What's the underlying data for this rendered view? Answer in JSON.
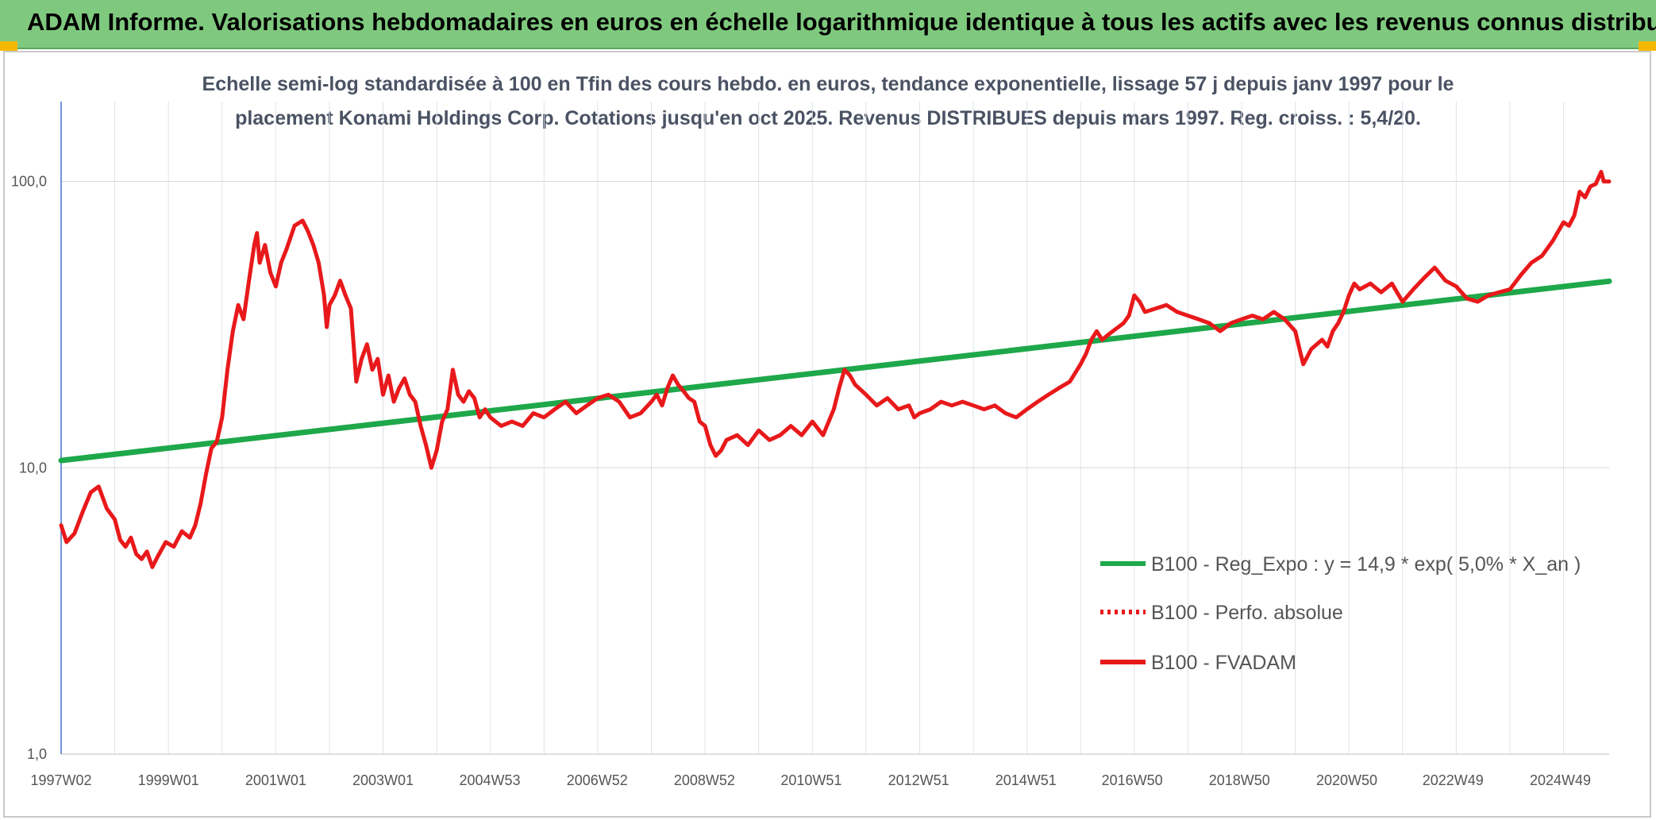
{
  "header": {
    "title": "ADAM Informe. Valorisations hebdomadaires en euros en échelle logarithmique identique à tous les actifs avec les revenus connus distribués",
    "background": "#7fc97f",
    "corner_color": "#f5b800"
  },
  "chart_data": {
    "type": "line",
    "subtitle_line1": "Echelle semi-log standardisée à 100 en Tfin des cours hebdo. en euros, tendance exponentielle, lissage 57 j depuis janv 1997 pour le",
    "subtitle_line2": "placement Konami Holdings Corp. Cotations jusqu'en oct 2025. Revenus DISTRIBUES depuis mars 1997. Reg. croiss. : 5,4/20.",
    "y_scale": "log",
    "ylim": [
      1,
      190
    ],
    "y_ticks": [
      {
        "value": 1,
        "label": "1,0"
      },
      {
        "value": 10,
        "label": "10,0"
      },
      {
        "value": 100,
        "label": "100,0"
      }
    ],
    "xlim": [
      1997.0,
      2025.85
    ],
    "x_ticks": [
      {
        "x": 1997.0,
        "label": "1997W02"
      },
      {
        "x": 1999.0,
        "label": "1999W01"
      },
      {
        "x": 2001.0,
        "label": "2001W01"
      },
      {
        "x": 2003.0,
        "label": "2003W01"
      },
      {
        "x": 2004.99,
        "label": "2004W53"
      },
      {
        "x": 2006.99,
        "label": "2006W52"
      },
      {
        "x": 2008.99,
        "label": "2008W52"
      },
      {
        "x": 2010.98,
        "label": "2010W51"
      },
      {
        "x": 2012.98,
        "label": "2012W51"
      },
      {
        "x": 2014.98,
        "label": "2014W51"
      },
      {
        "x": 2016.96,
        "label": "2016W50"
      },
      {
        "x": 2018.96,
        "label": "2018W50"
      },
      {
        "x": 2020.96,
        "label": "2020W50"
      },
      {
        "x": 2022.94,
        "label": "2022W49"
      },
      {
        "x": 2024.94,
        "label": "2024W49"
      }
    ],
    "grid": true,
    "legend_position": "bottom-right",
    "series": [
      {
        "name": "B100 - Reg_Expo : y = 14,9 * exp( 5,0% *  X_an )",
        "color": "#1ea84a",
        "style": "solid",
        "points": [
          [
            1997.0,
            10.6
          ],
          [
            2025.85,
            44.8
          ]
        ]
      },
      {
        "name": "B100 - Perfo. absolue",
        "color": "#e8191b",
        "style": "dotted",
        "points": []
      },
      {
        "name": "B100 - FVADAM",
        "color": "#e8191b",
        "style": "solid",
        "points": [
          [
            1997.0,
            6.3
          ],
          [
            1997.1,
            5.5
          ],
          [
            1997.25,
            5.9
          ],
          [
            1997.4,
            7.0
          ],
          [
            1997.55,
            8.2
          ],
          [
            1997.7,
            8.6
          ],
          [
            1997.85,
            7.2
          ],
          [
            1998.0,
            6.6
          ],
          [
            1998.1,
            5.6
          ],
          [
            1998.2,
            5.3
          ],
          [
            1998.3,
            5.7
          ],
          [
            1998.4,
            5.0
          ],
          [
            1998.5,
            4.8
          ],
          [
            1998.6,
            5.1
          ],
          [
            1998.7,
            4.5
          ],
          [
            1998.8,
            4.9
          ],
          [
            1998.95,
            5.5
          ],
          [
            1999.1,
            5.3
          ],
          [
            1999.25,
            6.0
          ],
          [
            1999.4,
            5.7
          ],
          [
            1999.5,
            6.3
          ],
          [
            1999.6,
            7.5
          ],
          [
            1999.7,
            9.5
          ],
          [
            1999.8,
            11.7
          ],
          [
            1999.9,
            12.3
          ],
          [
            2000.0,
            15.0
          ],
          [
            2000.1,
            22.0
          ],
          [
            2000.2,
            30.0
          ],
          [
            2000.3,
            37.0
          ],
          [
            2000.4,
            33.0
          ],
          [
            2000.5,
            45.0
          ],
          [
            2000.6,
            60.0
          ],
          [
            2000.65,
            66.0
          ],
          [
            2000.7,
            52.0
          ],
          [
            2000.8,
            60.0
          ],
          [
            2000.9,
            48.0
          ],
          [
            2001.0,
            43.0
          ],
          [
            2001.1,
            52.0
          ],
          [
            2001.2,
            58.0
          ],
          [
            2001.35,
            70.0
          ],
          [
            2001.5,
            73.0
          ],
          [
            2001.6,
            67.0
          ],
          [
            2001.7,
            60.0
          ],
          [
            2001.8,
            52.0
          ],
          [
            2001.9,
            40.0
          ],
          [
            2001.95,
            31.0
          ],
          [
            2002.0,
            37.0
          ],
          [
            2002.1,
            40.0
          ],
          [
            2002.2,
            45.0
          ],
          [
            2002.3,
            40.0
          ],
          [
            2002.4,
            36.0
          ],
          [
            2002.45,
            27.0
          ],
          [
            2002.5,
            20.0
          ],
          [
            2002.6,
            24.0
          ],
          [
            2002.7,
            27.0
          ],
          [
            2002.8,
            22.0
          ],
          [
            2002.9,
            24.0
          ],
          [
            2003.0,
            18.0
          ],
          [
            2003.1,
            21.0
          ],
          [
            2003.2,
            17.0
          ],
          [
            2003.3,
            19.0
          ],
          [
            2003.4,
            20.5
          ],
          [
            2003.5,
            18.0
          ],
          [
            2003.6,
            17.0
          ],
          [
            2003.7,
            14.0
          ],
          [
            2003.8,
            12.0
          ],
          [
            2003.9,
            10.0
          ],
          [
            2004.0,
            11.5
          ],
          [
            2004.1,
            14.5
          ],
          [
            2004.2,
            16.0
          ],
          [
            2004.3,
            22.0
          ],
          [
            2004.4,
            18.0
          ],
          [
            2004.5,
            17.0
          ],
          [
            2004.6,
            18.5
          ],
          [
            2004.7,
            17.5
          ],
          [
            2004.8,
            15.0
          ],
          [
            2004.9,
            16.0
          ],
          [
            2005.0,
            15.0
          ],
          [
            2005.2,
            14.0
          ],
          [
            2005.4,
            14.5
          ],
          [
            2005.6,
            14.0
          ],
          [
            2005.8,
            15.5
          ],
          [
            2006.0,
            15.0
          ],
          [
            2006.2,
            16.0
          ],
          [
            2006.4,
            17.0
          ],
          [
            2006.6,
            15.5
          ],
          [
            2006.8,
            16.5
          ],
          [
            2007.0,
            17.5
          ],
          [
            2007.2,
            18.0
          ],
          [
            2007.4,
            17.0
          ],
          [
            2007.6,
            15.0
          ],
          [
            2007.8,
            15.5
          ],
          [
            2008.0,
            17.0
          ],
          [
            2008.1,
            18.0
          ],
          [
            2008.2,
            16.5
          ],
          [
            2008.3,
            19.0
          ],
          [
            2008.4,
            21.0
          ],
          [
            2008.5,
            19.5
          ],
          [
            2008.6,
            18.5
          ],
          [
            2008.7,
            17.5
          ],
          [
            2008.8,
            17.0
          ],
          [
            2008.9,
            14.5
          ],
          [
            2009.0,
            14.0
          ],
          [
            2009.1,
            12.0
          ],
          [
            2009.2,
            11.0
          ],
          [
            2009.3,
            11.5
          ],
          [
            2009.4,
            12.5
          ],
          [
            2009.6,
            13.0
          ],
          [
            2009.8,
            12.0
          ],
          [
            2010.0,
            13.5
          ],
          [
            2010.2,
            12.5
          ],
          [
            2010.4,
            13.0
          ],
          [
            2010.6,
            14.0
          ],
          [
            2010.8,
            13.0
          ],
          [
            2011.0,
            14.5
          ],
          [
            2011.2,
            13.0
          ],
          [
            2011.4,
            16.0
          ],
          [
            2011.5,
            19.0
          ],
          [
            2011.6,
            22.0
          ],
          [
            2011.7,
            21.0
          ],
          [
            2011.8,
            19.5
          ],
          [
            2012.0,
            18.0
          ],
          [
            2012.2,
            16.5
          ],
          [
            2012.4,
            17.5
          ],
          [
            2012.6,
            16.0
          ],
          [
            2012.8,
            16.5
          ],
          [
            2012.9,
            15.0
          ],
          [
            2013.0,
            15.5
          ],
          [
            2013.2,
            16.0
          ],
          [
            2013.4,
            17.0
          ],
          [
            2013.6,
            16.5
          ],
          [
            2013.8,
            17.0
          ],
          [
            2014.0,
            16.5
          ],
          [
            2014.2,
            16.0
          ],
          [
            2014.4,
            16.5
          ],
          [
            2014.6,
            15.5
          ],
          [
            2014.8,
            15.0
          ],
          [
            2015.0,
            16.0
          ],
          [
            2015.2,
            17.0
          ],
          [
            2015.4,
            18.0
          ],
          [
            2015.6,
            19.0
          ],
          [
            2015.8,
            20.0
          ],
          [
            2016.0,
            23.0
          ],
          [
            2016.1,
            25.0
          ],
          [
            2016.2,
            28.0
          ],
          [
            2016.3,
            30.0
          ],
          [
            2016.4,
            28.0
          ],
          [
            2016.5,
            29.0
          ],
          [
            2016.6,
            30.0
          ],
          [
            2016.8,
            32.0
          ],
          [
            2016.9,
            34.0
          ],
          [
            2017.0,
            40.0
          ],
          [
            2017.1,
            38.0
          ],
          [
            2017.2,
            35.0
          ],
          [
            2017.4,
            36.0
          ],
          [
            2017.6,
            37.0
          ],
          [
            2017.8,
            35.0
          ],
          [
            2018.0,
            34.0
          ],
          [
            2018.2,
            33.0
          ],
          [
            2018.4,
            32.0
          ],
          [
            2018.6,
            30.0
          ],
          [
            2018.8,
            32.0
          ],
          [
            2019.0,
            33.0
          ],
          [
            2019.2,
            34.0
          ],
          [
            2019.4,
            33.0
          ],
          [
            2019.6,
            35.0
          ],
          [
            2019.8,
            33.0
          ],
          [
            2020.0,
            30.0
          ],
          [
            2020.1,
            25.0
          ],
          [
            2020.15,
            23.0
          ],
          [
            2020.3,
            26.0
          ],
          [
            2020.5,
            28.0
          ],
          [
            2020.6,
            26.5
          ],
          [
            2020.7,
            30.0
          ],
          [
            2020.8,
            32.0
          ],
          [
            2020.9,
            35.0
          ],
          [
            2021.0,
            40.0
          ],
          [
            2021.1,
            44.0
          ],
          [
            2021.2,
            42.0
          ],
          [
            2021.4,
            44.0
          ],
          [
            2021.6,
            41.0
          ],
          [
            2021.8,
            44.0
          ],
          [
            2022.0,
            38.0
          ],
          [
            2022.2,
            42.0
          ],
          [
            2022.4,
            46.0
          ],
          [
            2022.6,
            50.0
          ],
          [
            2022.8,
            45.0
          ],
          [
            2023.0,
            43.0
          ],
          [
            2023.2,
            39.0
          ],
          [
            2023.4,
            38.0
          ],
          [
            2023.6,
            40.0
          ],
          [
            2023.8,
            41.0
          ],
          [
            2024.0,
            42.0
          ],
          [
            2024.2,
            47.0
          ],
          [
            2024.4,
            52.0
          ],
          [
            2024.6,
            55.0
          ],
          [
            2024.8,
            62.0
          ],
          [
            2025.0,
            72.0
          ],
          [
            2025.1,
            70.0
          ],
          [
            2025.2,
            76.0
          ],
          [
            2025.3,
            92.0
          ],
          [
            2025.4,
            88.0
          ],
          [
            2025.5,
            96.0
          ],
          [
            2025.6,
            98.0
          ],
          [
            2025.7,
            108.0
          ],
          [
            2025.75,
            100.0
          ],
          [
            2025.85,
            100.0
          ]
        ]
      }
    ]
  }
}
